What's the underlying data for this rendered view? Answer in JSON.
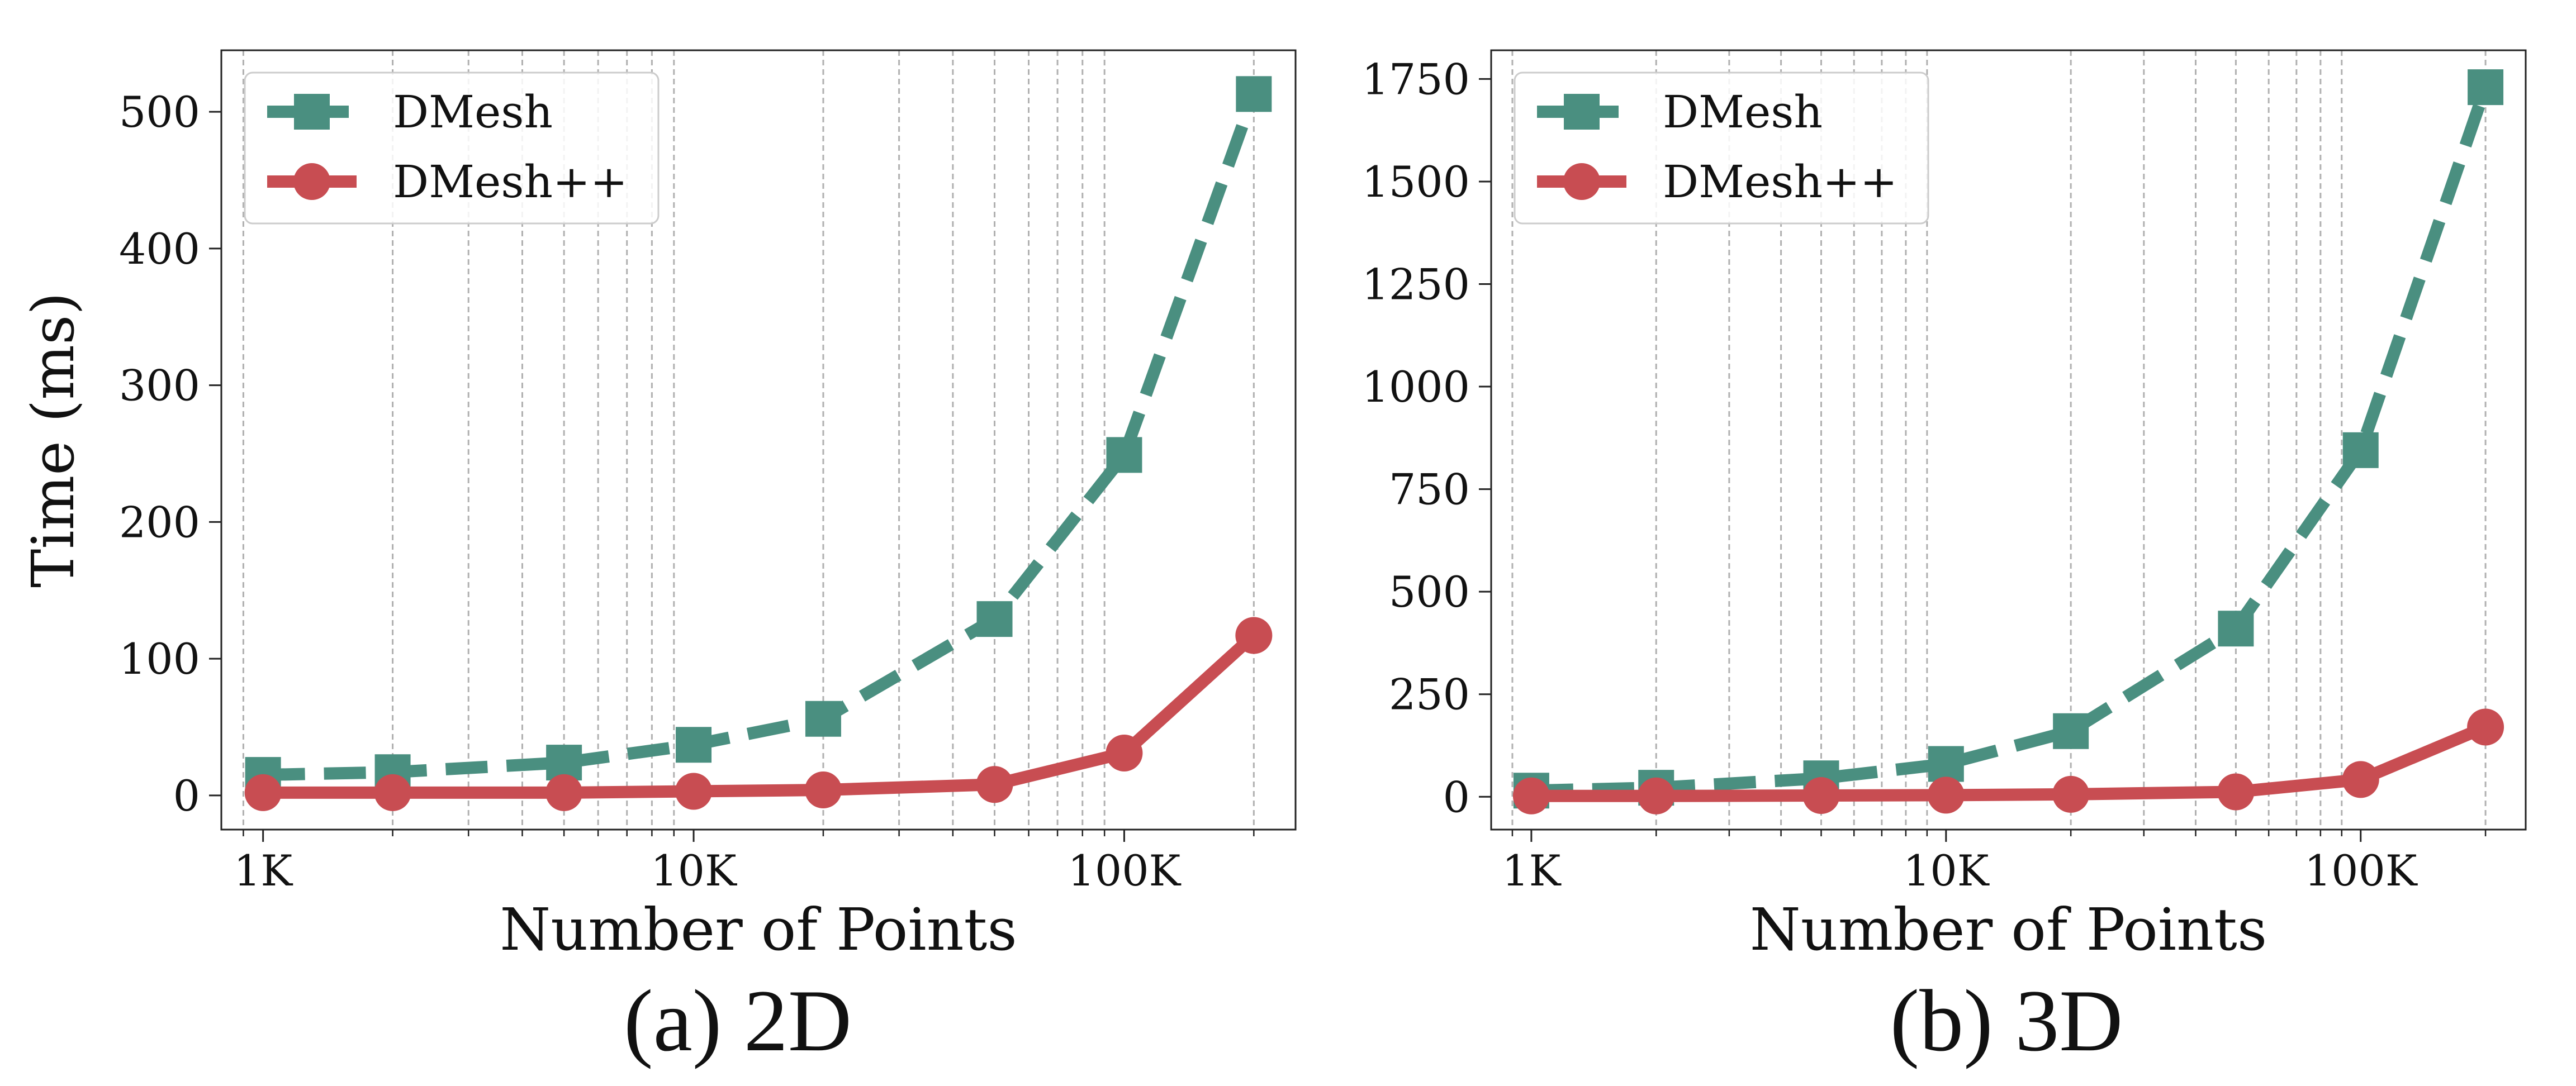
{
  "chart_data": [
    {
      "type": "line",
      "caption": "(a) 2D",
      "xlabel": "Number of Points",
      "ylabel": "Time (ms)",
      "xscale": "log",
      "xlim": [
        800,
        250000
      ],
      "ylim": [
        -25,
        545
      ],
      "xticks": [
        {
          "value": 1000,
          "label": "1K"
        },
        {
          "value": 10000,
          "label": "10K"
        },
        {
          "value": 100000,
          "label": "100K"
        }
      ],
      "yticks": [
        0,
        100,
        200,
        300,
        400,
        500
      ],
      "grid": "x-minor-dotted",
      "legend": "upper-left",
      "series": [
        {
          "name": "DMesh",
          "color": "#4a8f80",
          "line": "dashed",
          "marker": "square",
          "x": [
            1000,
            2000,
            5000,
            10000,
            20000,
            50000,
            100000,
            200000
          ],
          "y": [
            15,
            17,
            24,
            37,
            56,
            129,
            249,
            513
          ]
        },
        {
          "name": "DMesh++",
          "color": "#c84d52",
          "line": "solid",
          "marker": "circle",
          "x": [
            1000,
            2000,
            5000,
            10000,
            20000,
            50000,
            100000,
            200000
          ],
          "y": [
            2,
            2,
            2,
            3,
            4,
            8,
            31,
            117
          ]
        }
      ]
    },
    {
      "type": "line",
      "caption": "(b) 3D",
      "xlabel": "Number of Points",
      "ylabel": "",
      "xscale": "log",
      "xlim": [
        800,
        250000
      ],
      "ylim": [
        -80,
        1820
      ],
      "xticks": [
        {
          "value": 1000,
          "label": "1K"
        },
        {
          "value": 10000,
          "label": "10K"
        },
        {
          "value": 100000,
          "label": "100K"
        }
      ],
      "yticks": [
        0,
        250,
        500,
        750,
        1000,
        1250,
        1500,
        1750
      ],
      "grid": "x-minor-dotted",
      "legend": "upper-left",
      "series": [
        {
          "name": "DMesh",
          "color": "#4a8f80",
          "line": "dashed",
          "marker": "square",
          "x": [
            1000,
            2000,
            5000,
            10000,
            20000,
            50000,
            100000,
            200000
          ],
          "y": [
            15,
            22,
            45,
            80,
            160,
            410,
            845,
            1730
          ]
        },
        {
          "name": "DMesh++",
          "color": "#c84d52",
          "line": "solid",
          "marker": "circle",
          "x": [
            1000,
            2000,
            5000,
            10000,
            20000,
            50000,
            100000,
            200000
          ],
          "y": [
            2,
            2,
            3,
            4,
            6,
            12,
            42,
            170
          ]
        }
      ]
    }
  ]
}
